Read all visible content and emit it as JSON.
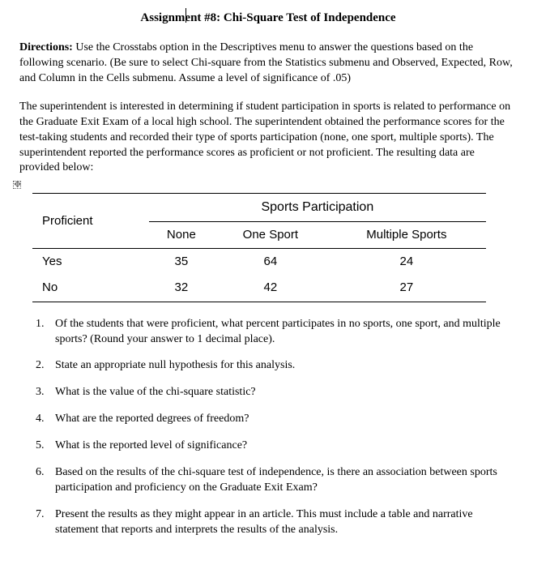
{
  "title": "Assignment #8: Chi-Square Test of Independence",
  "directions_label": "Directions:",
  "directions_text": " Use the Crosstabs option in the Descriptives menu to answer the questions based on the following scenario. (Be sure to select Chi-square from the Statistics submenu and Observed, Expected, Row, and Column in the Cells submenu. Assume a level of significance of .05)",
  "scenario_text": "The superintendent is interested in determining if student participation in sports is related to performance on the Graduate Exit Exam of a local high school. The superintendent obtained the performance scores for the test-taking students and recorded their type of sports participation (none, one sport, multiple sports). The superintendent reported the performance scores as proficient or not proficient. The resulting data are provided below:",
  "table": {
    "row_var": "Proficient",
    "col_header": "Sports Participation",
    "columns": [
      "None",
      "One Sport",
      "Multiple Sports"
    ],
    "rows": [
      {
        "label": "Yes",
        "values": [
          "35",
          "64",
          "24"
        ]
      },
      {
        "label": "No",
        "values": [
          "32",
          "42",
          "27"
        ]
      }
    ]
  },
  "questions": [
    "Of the students that were proficient, what percent participates in no sports, one sport, and multiple sports? (Round your answer to 1 decimal place).",
    "State an appropriate null hypothesis for this analysis.",
    "What is the value of the chi-square statistic?",
    "What are the reported degrees of freedom?",
    "What is the reported level of significance?",
    "Based on the results of the chi-square test of independence, is there an association between sports participation and proficiency on the Graduate Exit Exam?",
    "Present the results as they might appear in an article. This must include a table and narrative statement that reports and interprets the results of the analysis."
  ]
}
